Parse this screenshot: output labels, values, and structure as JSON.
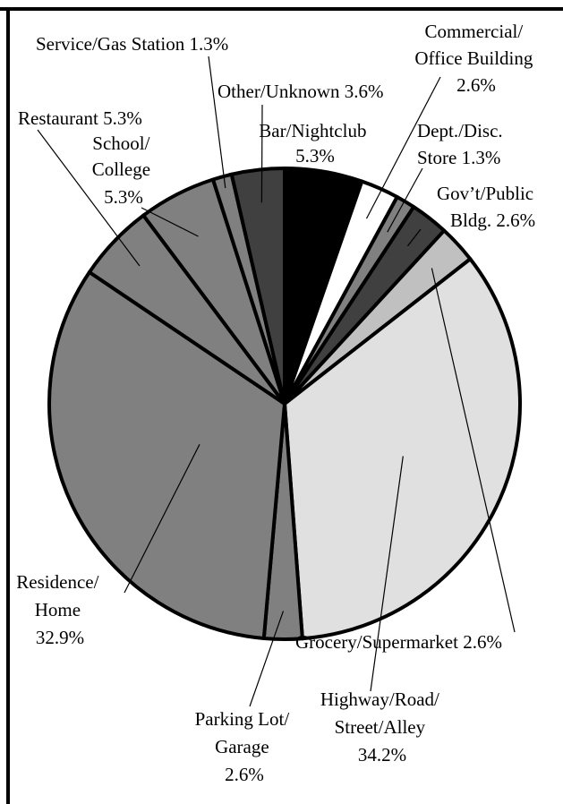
{
  "chart_data": {
    "type": "pie",
    "title": "",
    "start_angle_deg": 0,
    "direction": "clockwise",
    "slices": [
      {
        "label": "Bar/Nightclub",
        "value_text": "5.3%",
        "value": 5.3,
        "color": "#000000"
      },
      {
        "label": "Commercial/ Office Building",
        "value_text": "2.6%",
        "value": 2.6,
        "color": "#ffffff"
      },
      {
        "label": "Dept./Disc. Store",
        "value_text": "1.3%",
        "value": 1.3,
        "color": "#808080"
      },
      {
        "label": "Gov’t/Public Bldg.",
        "value_text": "2.6%",
        "value": 2.6,
        "color": "#404040"
      },
      {
        "label": "Grocery/Supermarket",
        "value_text": "2.6%",
        "value": 2.6,
        "color": "#c0c0c0"
      },
      {
        "label": "Highway/Road/ Street/Alley",
        "value_text": "34.2%",
        "value": 34.2,
        "color": "#e0e0e0"
      },
      {
        "label": "Parking Lot/ Garage",
        "value_text": "2.6%",
        "value": 2.6,
        "color": "#808080"
      },
      {
        "label": "Residence/ Home",
        "value_text": "32.9%",
        "value": 32.9,
        "color": "#808080"
      },
      {
        "label": "Restaurant",
        "value_text": "5.3%",
        "value": 5.3,
        "color": "#808080"
      },
      {
        "label": "School/ College",
        "value_text": "5.3%",
        "value": 5.3,
        "color": "#808080"
      },
      {
        "label": "Service/Gas Station",
        "value_text": "1.3%",
        "value": 1.3,
        "color": "#808080"
      },
      {
        "label": "Other/Unknown",
        "value_text": "3.6%",
        "value": 3.6,
        "color": "#404040"
      }
    ]
  }
}
